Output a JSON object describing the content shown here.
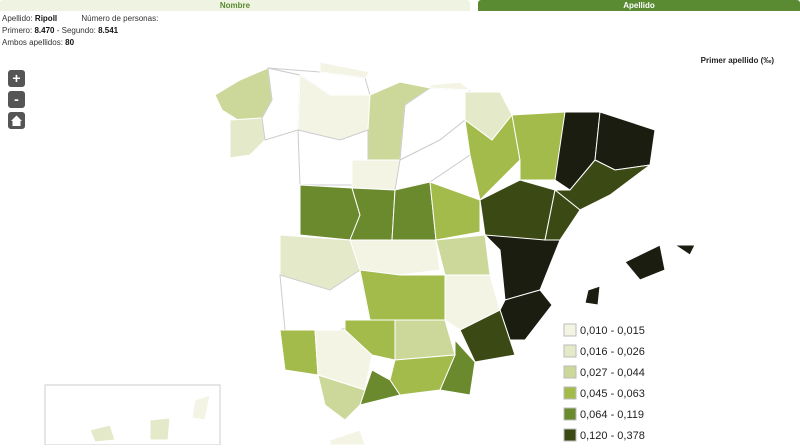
{
  "tabs": [
    "Nombre",
    "Apellido"
  ],
  "info": {
    "surname_label": "Apellido:",
    "surname": "Ripoll",
    "count_label": "Número de personas:",
    "first_label": "Primero:",
    "first": "8.470",
    "second_label": "- Segundo:",
    "second": "8.541",
    "both_label": "Ambos apellidos:",
    "both": "80"
  },
  "zoom": {
    "in": "+",
    "out": "-"
  },
  "legend": {
    "title": "Primer apellido (‰)",
    "items": [
      {
        "label": "0,010 - 0,015",
        "color": "#f3f4e4"
      },
      {
        "label": "0,016 - 0,026",
        "color": "#e4e9c9"
      },
      {
        "label": "0,027 - 0,044",
        "color": "#cbd899"
      },
      {
        "label": "0,045 - 0,063",
        "color": "#a3bb4a"
      },
      {
        "label": "0,064 - 0,119",
        "color": "#6b8a2e"
      },
      {
        "label": "0,120 - 0,378",
        "color": "#3b4a15"
      },
      {
        "color": "#1a1d10"
      }
    ]
  }
}
